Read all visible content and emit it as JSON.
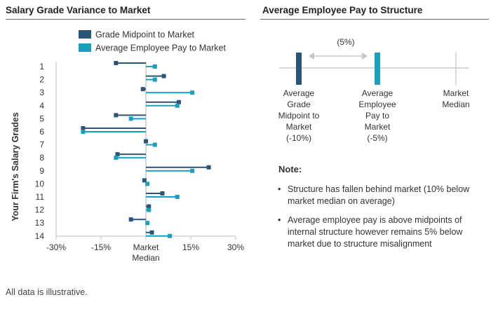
{
  "left_panel": {
    "title": "Salary Grade Variance to Market"
  },
  "right_panel": {
    "title": "Average Employee Pay to Structure"
  },
  "colors": {
    "midpoint": "#2a5578",
    "avg_pay": "#18a0be",
    "marker_gray": "#cccccc",
    "arrow_gray": "#c7c7c7"
  },
  "chart_data": {
    "type": "bar",
    "orientation": "horizontal",
    "title": "Salary Grade Variance to Market",
    "categories": [
      "1",
      "2",
      "3",
      "4",
      "5",
      "6",
      "7",
      "8",
      "9",
      "10",
      "11",
      "12",
      "13",
      "14"
    ],
    "series": [
      {
        "name": "Grade Midpoint to Market",
        "values": [
          -10,
          6,
          -1,
          11,
          -10,
          -21,
          0,
          -9.5,
          21,
          -0.5,
          5.5,
          1,
          -5,
          2
        ]
      },
      {
        "name": "Average Employee Pay to Market",
        "values": [
          3,
          3,
          15.5,
          10.5,
          -5,
          -21,
          3,
          -10,
          15.5,
          0.5,
          10.5,
          1,
          0.5,
          8
        ]
      }
    ],
    "xlim": [
      -30,
      30
    ],
    "xticks": [
      -30,
      -15,
      0,
      15,
      30
    ],
    "xtick_labels": [
      "-30%",
      "-15%",
      "Market",
      "15%",
      "30%"
    ],
    "xtick_sublabel": "Median",
    "ylabel": "Your Firm's Salary Grades",
    "xlabel": "",
    "legend_position": "top"
  },
  "structure_diagram": {
    "gap_label": "(5%)",
    "markers": [
      {
        "label_lines": [
          "Average",
          "Grade",
          "Midpoint to",
          "Market",
          "(-10%)"
        ],
        "value": -10
      },
      {
        "label_lines": [
          "Average",
          "Employee",
          "Pay to",
          "Market",
          "(-5%)"
        ],
        "value": -5
      },
      {
        "label_lines": [
          "Market",
          "Median"
        ],
        "value": 0
      }
    ]
  },
  "note": {
    "title": "Note:",
    "bullet": "•",
    "items": [
      "Structure has fallen behind market (10% below market median on average)",
      "Average employee pay is above midpoints of internal structure however remains 5% below market due to structure misalignment"
    ]
  },
  "footnote": "All data is illustrative."
}
